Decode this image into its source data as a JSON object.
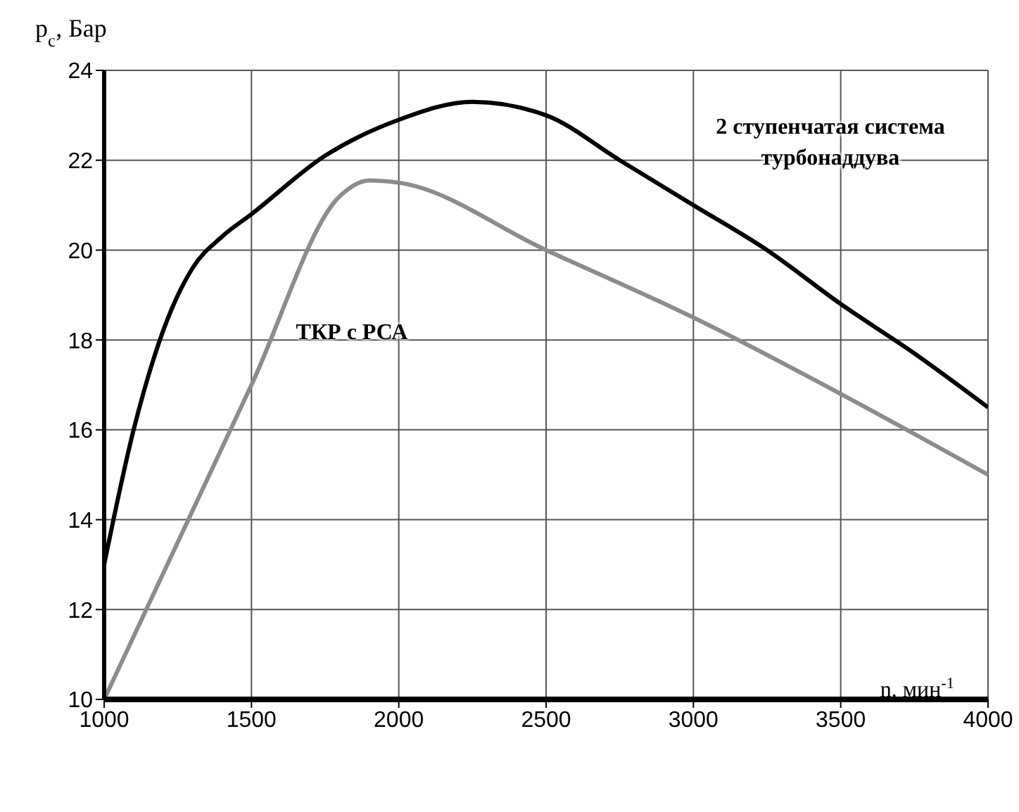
{
  "chart_data": {
    "type": "line",
    "ylabel": "p$_{c}$, Бар",
    "xlabel": "n, мин$^{-1}$",
    "xlim": [
      1000,
      4000
    ],
    "xticks": [
      1000,
      1500,
      2000,
      2500,
      3000,
      3500,
      4000
    ],
    "ylim": [
      10,
      24
    ],
    "yticks": [
      10,
      12,
      14,
      16,
      18,
      20,
      22,
      24
    ],
    "grid": true,
    "marker": "none",
    "line_style": "solid",
    "series": [
      {
        "name": "2 ступенчатая система турбонаддува",
        "color": "#000000",
        "x": [
          1000,
          1100,
          1200,
          1300,
          1400,
          1500,
          1750,
          2000,
          2250,
          2500,
          2750,
          3000,
          3250,
          3500,
          3750,
          4000
        ],
        "values": [
          13,
          16,
          18.2,
          19.6,
          20.3,
          20.8,
          22.1,
          22.9,
          23.3,
          23.0,
          22.0,
          21.0,
          20.0,
          18.8,
          17.7,
          16.5
        ]
      },
      {
        "name": "ТКР с РСА",
        "color": "#8c8c8c",
        "x": [
          1000,
          1500,
          1800,
          1900,
          2000,
          2500,
          3000,
          3500,
          4000
        ],
        "values": [
          10,
          17,
          21.2,
          21.55,
          21.5,
          20.0,
          18.5,
          16.8,
          15.0
        ]
      }
    ]
  }
}
